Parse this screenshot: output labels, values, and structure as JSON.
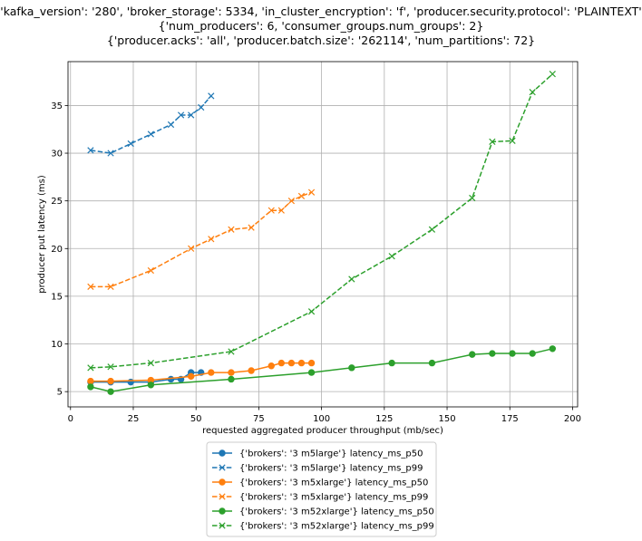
{
  "chart_data": {
    "type": "line",
    "title_lines": [
      "{'kafka_version': '280', 'broker_storage': 5334, 'in_cluster_encryption': 'f', 'producer.security.protocol': 'PLAINTEXT'}",
      "{'num_producers': 6, 'consumer_groups.num_groups': 2}",
      "{'producer.acks': 'all', 'producer.batch.size': '262114', 'num_partitions': 72}"
    ],
    "xlabel": "requested aggregated producer throughput (mb/sec)",
    "ylabel": "producer put latency (ms)",
    "xlim": [
      -1,
      202
    ],
    "ylim": [
      3.4,
      39.6
    ],
    "x_ticks": [
      0,
      25,
      50,
      75,
      100,
      125,
      150,
      175,
      200
    ],
    "y_ticks": [
      5,
      10,
      15,
      20,
      25,
      30,
      35
    ],
    "grid": true,
    "legend_position": "below",
    "series": [
      {
        "name": "{'brokers': '3 m5large'} latency_ms_p50",
        "color": "#1f77b4",
        "line_style": "solid",
        "marker": "circle",
        "x": [
          8,
          16,
          24,
          32,
          40,
          44,
          48,
          52
        ],
        "y": [
          6.0,
          6.0,
          6.0,
          6.0,
          6.3,
          6.3,
          7.0,
          7.0
        ]
      },
      {
        "name": "{'brokers': '3 m5large'} latency_ms_p99",
        "color": "#1f77b4",
        "line_style": "dashed",
        "marker": "x",
        "x": [
          8,
          16,
          24,
          32,
          40,
          44,
          48,
          52,
          56
        ],
        "y": [
          30.3,
          30.0,
          31.0,
          32.0,
          33.0,
          34.0,
          34.0,
          34.8,
          36.0
        ]
      },
      {
        "name": "{'brokers': '3 m5xlarge'} latency_ms_p50",
        "color": "#ff7f0e",
        "line_style": "solid",
        "marker": "circle",
        "x": [
          8,
          16,
          32,
          48,
          56,
          64,
          72,
          80,
          84,
          88,
          92,
          96
        ],
        "y": [
          6.1,
          6.1,
          6.2,
          6.6,
          7.0,
          7.0,
          7.2,
          7.7,
          8.0,
          8.0,
          8.0,
          8.0
        ]
      },
      {
        "name": "{'brokers': '3 m5xlarge'} latency_ms_p99",
        "color": "#ff7f0e",
        "line_style": "dashed",
        "marker": "x",
        "x": [
          8,
          16,
          32,
          48,
          56,
          64,
          72,
          80,
          84,
          88,
          92,
          96
        ],
        "y": [
          16.0,
          16.0,
          17.7,
          20.0,
          21.0,
          22.0,
          22.2,
          24.0,
          24.0,
          25.0,
          25.5,
          25.9
        ]
      },
      {
        "name": "{'brokers': '3 m52xlarge'} latency_ms_p50",
        "color": "#2ca02c",
        "line_style": "solid",
        "marker": "circle",
        "x": [
          8,
          16,
          32,
          64,
          96,
          112,
          128,
          144,
          160,
          168,
          176,
          184,
          192
        ],
        "y": [
          5.5,
          5.0,
          5.7,
          6.3,
          7.0,
          7.5,
          8.0,
          8.0,
          8.9,
          9.0,
          9.0,
          9.0,
          9.5
        ]
      },
      {
        "name": "{'brokers': '3 m52xlarge'} latency_ms_p99",
        "color": "#2ca02c",
        "line_style": "dashed",
        "marker": "x",
        "x": [
          8,
          16,
          32,
          64,
          96,
          112,
          128,
          144,
          160,
          168,
          176,
          184,
          192
        ],
        "y": [
          7.5,
          7.6,
          8.0,
          9.2,
          13.4,
          16.8,
          19.2,
          22.0,
          25.3,
          31.2,
          31.3,
          36.4,
          38.3
        ]
      }
    ]
  }
}
